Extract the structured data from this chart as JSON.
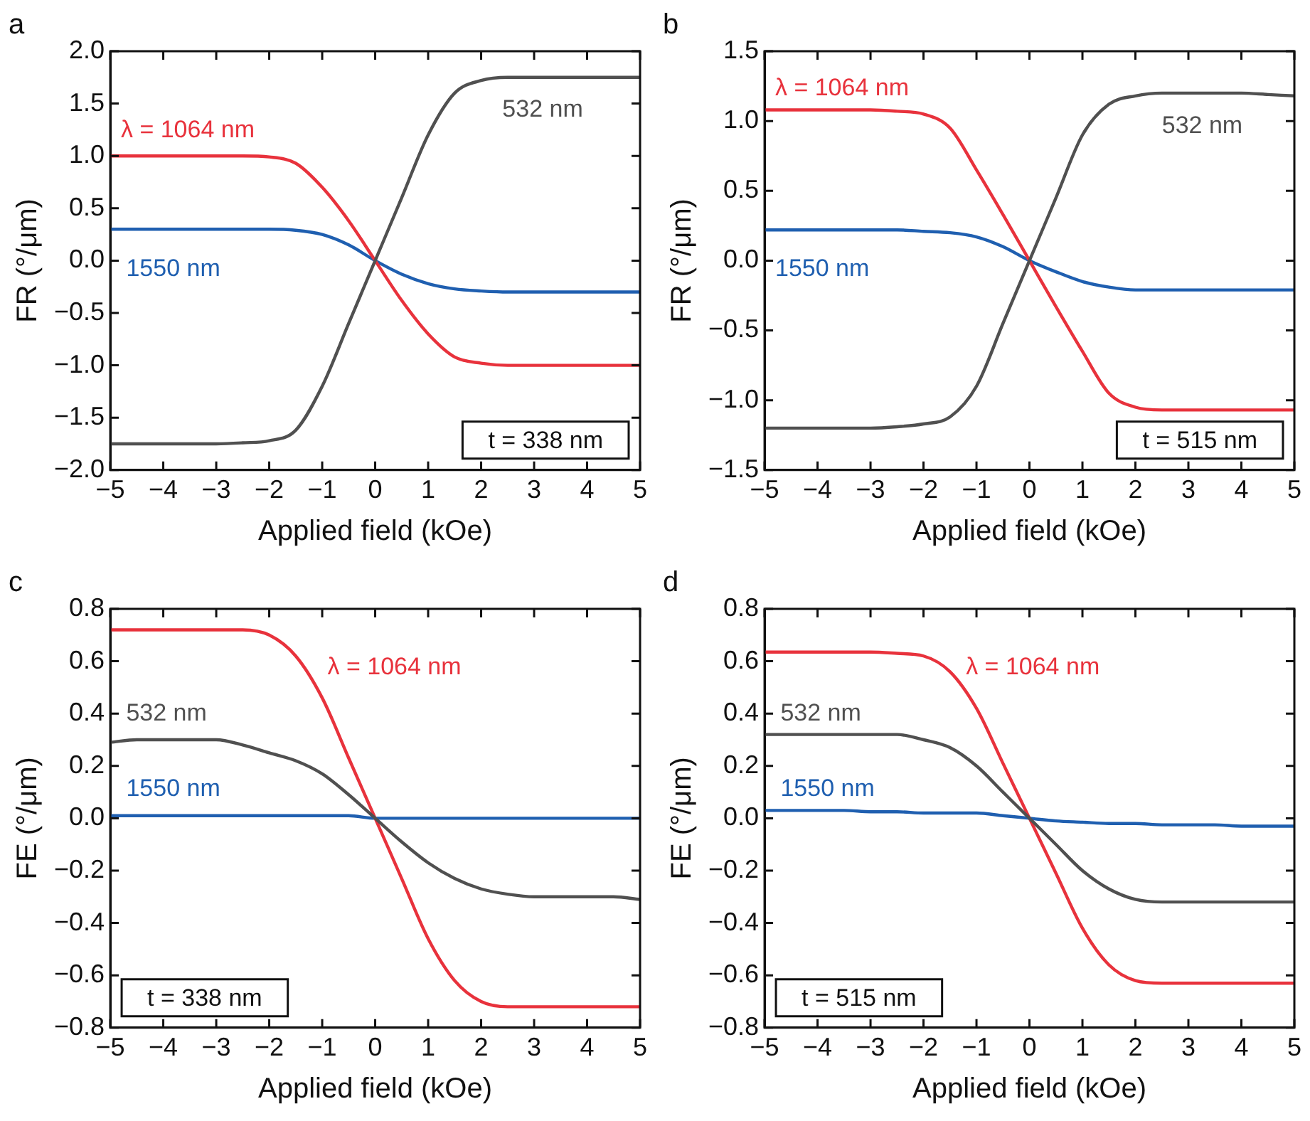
{
  "chart_data": [
    {
      "type": "line",
      "title": "a",
      "xlabel": "Applied field (kOe)",
      "ylabel": "FR (°/μm)",
      "annotations": [
        "t = 338 nm"
      ],
      "x": [
        -5,
        -4.5,
        -4,
        -3.5,
        -3,
        -2.5,
        -2,
        -1.5,
        -1,
        -0.5,
        0,
        0.5,
        1,
        1.5,
        2,
        2.5,
        3,
        3.5,
        4,
        4.5,
        5
      ],
      "series": [
        {
          "name": "532 nm",
          "color": "#505050",
          "values": [
            -1.75,
            -1.75,
            -1.75,
            -1.75,
            -1.75,
            -1.74,
            -1.72,
            -1.62,
            -1.2,
            -0.6,
            0,
            0.6,
            1.2,
            1.6,
            1.72,
            1.75,
            1.75,
            1.75,
            1.75,
            1.75,
            1.75
          ]
        },
        {
          "name": "λ = 1064 nm",
          "color": "#e8323c",
          "values": [
            1.0,
            1.0,
            1.0,
            1.0,
            1.0,
            1.0,
            0.99,
            0.93,
            0.7,
            0.38,
            0,
            -0.38,
            -0.7,
            -0.92,
            -0.98,
            -1.0,
            -1.0,
            -1.0,
            -1.0,
            -1.0,
            -1.0
          ]
        },
        {
          "name": "1550 nm",
          "color": "#1f5fb0",
          "values": [
            0.3,
            0.3,
            0.3,
            0.3,
            0.3,
            0.3,
            0.3,
            0.29,
            0.25,
            0.15,
            0,
            -0.13,
            -0.22,
            -0.27,
            -0.29,
            -0.3,
            -0.3,
            -0.3,
            -0.3,
            -0.3,
            -0.3
          ]
        }
      ],
      "xlim": [
        -5,
        5
      ],
      "ylim": [
        -2,
        2
      ],
      "xticks": [
        {
          "value": -5,
          "label": "−5"
        },
        {
          "value": -4,
          "label": "−4"
        },
        {
          "value": -3,
          "label": "−3"
        },
        {
          "value": -2,
          "label": "−2"
        },
        {
          "value": -1,
          "label": "−1"
        },
        0,
        1,
        2,
        3,
        4,
        5
      ],
      "yticks": [
        {
          "value": -2,
          "label": "−2.0"
        },
        {
          "value": -1.5,
          "label": "−1.5"
        },
        {
          "value": -1,
          "label": "−1.0"
        },
        {
          "value": -0.5,
          "label": "−0.5"
        },
        {
          "value": 0,
          "label": "0.0"
        },
        0.5,
        {
          "value": 1,
          "label": "1.0"
        },
        1.5,
        {
          "value": 2,
          "label": "2.0"
        }
      ],
      "legend": false,
      "grid": false,
      "marker": "none"
    },
    {
      "type": "line",
      "title": "b",
      "xlabel": "Applied field (kOe)",
      "ylabel": "FR (°/μm)",
      "annotations": [
        "t = 515 nm"
      ],
      "x": [
        -5,
        -4.5,
        -4,
        -3.5,
        -3,
        -2.5,
        -2,
        -1.5,
        -1,
        -0.5,
        0,
        0.5,
        1,
        1.5,
        2,
        2.5,
        3,
        3.5,
        4,
        4.5,
        5
      ],
      "series": [
        {
          "name": "532 nm",
          "color": "#505050",
          "values": [
            -1.2,
            -1.2,
            -1.2,
            -1.2,
            -1.2,
            -1.19,
            -1.17,
            -1.12,
            -0.9,
            -0.45,
            0,
            0.45,
            0.9,
            1.12,
            1.18,
            1.2,
            1.2,
            1.2,
            1.2,
            1.19,
            1.18
          ]
        },
        {
          "name": "λ = 1064 nm",
          "color": "#e8323c",
          "values": [
            1.08,
            1.08,
            1.08,
            1.08,
            1.08,
            1.07,
            1.05,
            0.95,
            0.65,
            0.33,
            0,
            -0.33,
            -0.65,
            -0.95,
            -1.05,
            -1.07,
            -1.07,
            -1.07,
            -1.07,
            -1.07,
            -1.07
          ]
        },
        {
          "name": "1550 nm",
          "color": "#1f5fb0",
          "values": [
            0.22,
            0.22,
            0.22,
            0.22,
            0.22,
            0.22,
            0.21,
            0.2,
            0.17,
            0.1,
            0,
            -0.08,
            -0.15,
            -0.19,
            -0.21,
            -0.21,
            -0.21,
            -0.21,
            -0.21,
            -0.21,
            -0.21
          ]
        }
      ],
      "xlim": [
        -5,
        5
      ],
      "ylim": [
        -1.5,
        1.5
      ],
      "xticks": [
        {
          "value": -5,
          "label": "−5"
        },
        {
          "value": -4,
          "label": "−4"
        },
        {
          "value": -3,
          "label": "−3"
        },
        {
          "value": -2,
          "label": "−2"
        },
        {
          "value": -1,
          "label": "−1"
        },
        0,
        1,
        2,
        3,
        4,
        5
      ],
      "yticks": [
        {
          "value": -1.5,
          "label": "−1.5"
        },
        {
          "value": -1,
          "label": "−1.0"
        },
        {
          "value": -0.5,
          "label": "−0.5"
        },
        {
          "value": 0,
          "label": "0.0"
        },
        0.5,
        {
          "value": 1,
          "label": "1.0"
        },
        1.5
      ],
      "legend": false,
      "grid": false,
      "marker": "none"
    },
    {
      "type": "line",
      "title": "c",
      "xlabel": "Applied field (kOe)",
      "ylabel": "FE (°/μm)",
      "annotations": [
        "t = 338 nm"
      ],
      "x": [
        -5,
        -4.5,
        -4,
        -3.5,
        -3,
        -2.5,
        -2,
        -1.5,
        -1,
        -0.5,
        0,
        0.5,
        1,
        1.5,
        2,
        2.5,
        3,
        3.5,
        4,
        4.5,
        5
      ],
      "series": [
        {
          "name": "532 nm",
          "color": "#505050",
          "values": [
            0.29,
            0.3,
            0.3,
            0.3,
            0.3,
            0.28,
            0.25,
            0.22,
            0.17,
            0.09,
            0,
            -0.09,
            -0.17,
            -0.23,
            -0.27,
            -0.29,
            -0.3,
            -0.3,
            -0.3,
            -0.3,
            -0.31
          ]
        },
        {
          "name": "λ = 1064 nm",
          "color": "#e8323c",
          "values": [
            0.72,
            0.72,
            0.72,
            0.72,
            0.72,
            0.72,
            0.7,
            0.62,
            0.46,
            0.23,
            0,
            -0.23,
            -0.46,
            -0.62,
            -0.7,
            -0.72,
            -0.72,
            -0.72,
            -0.72,
            -0.72,
            -0.72
          ]
        },
        {
          "name": "1550 nm",
          "color": "#1f5fb0",
          "values": [
            0.01,
            0.01,
            0.01,
            0.01,
            0.01,
            0.01,
            0.01,
            0.01,
            0.01,
            0.01,
            0,
            0,
            0,
            0,
            0,
            0,
            0,
            0,
            0,
            0,
            0
          ]
        }
      ],
      "xlim": [
        -5,
        5
      ],
      "ylim": [
        -0.8,
        0.8
      ],
      "xticks": [
        {
          "value": -5,
          "label": "−5"
        },
        {
          "value": -4,
          "label": "−4"
        },
        {
          "value": -3,
          "label": "−3"
        },
        {
          "value": -2,
          "label": "−2"
        },
        {
          "value": -1,
          "label": "−1"
        },
        0,
        1,
        2,
        3,
        4,
        5
      ],
      "yticks": [
        {
          "value": -0.8,
          "label": "−0.8"
        },
        {
          "value": -0.6,
          "label": "−0.6"
        },
        {
          "value": -0.4,
          "label": "−0.4"
        },
        {
          "value": -0.2,
          "label": "−0.2"
        },
        {
          "value": 0,
          "label": "0.0"
        },
        0.2,
        0.4,
        0.6,
        0.8
      ],
      "legend": false,
      "grid": false,
      "marker": "none"
    },
    {
      "type": "line",
      "title": "d",
      "xlabel": "Applied field (kOe)",
      "ylabel": "FE (°/μm)",
      "annotations": [
        "t = 515 nm"
      ],
      "x": [
        -5,
        -4.5,
        -4,
        -3.5,
        -3,
        -2.5,
        -2,
        -1.5,
        -1,
        -0.5,
        0,
        0.5,
        1,
        1.5,
        2,
        2.5,
        3,
        3.5,
        4,
        4.5,
        5
      ],
      "series": [
        {
          "name": "532 nm",
          "color": "#505050",
          "values": [
            0.32,
            0.32,
            0.32,
            0.32,
            0.32,
            0.32,
            0.3,
            0.27,
            0.2,
            0.1,
            0,
            -0.1,
            -0.2,
            -0.27,
            -0.31,
            -0.32,
            -0.32,
            -0.32,
            -0.32,
            -0.32,
            -0.32
          ]
        },
        {
          "name": "λ = 1064 nm",
          "color": "#e8323c",
          "values": [
            0.635,
            0.635,
            0.635,
            0.635,
            0.635,
            0.63,
            0.62,
            0.56,
            0.42,
            0.21,
            0,
            -0.21,
            -0.42,
            -0.56,
            -0.62,
            -0.63,
            -0.63,
            -0.63,
            -0.63,
            -0.63,
            -0.63
          ]
        },
        {
          "name": "1550 nm",
          "color": "#1f5fb0",
          "values": [
            0.03,
            0.03,
            0.03,
            0.03,
            0.025,
            0.025,
            0.02,
            0.02,
            0.02,
            0.01,
            0,
            -0.01,
            -0.015,
            -0.02,
            -0.02,
            -0.025,
            -0.025,
            -0.025,
            -0.03,
            -0.03,
            -0.03
          ]
        }
      ],
      "xlim": [
        -5,
        5
      ],
      "ylim": [
        -0.8,
        0.8
      ],
      "xticks": [
        {
          "value": -5,
          "label": "−5"
        },
        {
          "value": -4,
          "label": "−4"
        },
        {
          "value": -3,
          "label": "−3"
        },
        {
          "value": -2,
          "label": "−2"
        },
        {
          "value": -1,
          "label": "−1"
        },
        0,
        1,
        2,
        3,
        4,
        5
      ],
      "yticks": [
        {
          "value": -0.8,
          "label": "−0.8"
        },
        {
          "value": -0.6,
          "label": "−0.6"
        },
        {
          "value": -0.4,
          "label": "−0.4"
        },
        {
          "value": -0.2,
          "label": "−0.2"
        },
        {
          "value": 0,
          "label": "0.0"
        },
        0.2,
        0.4,
        0.6,
        0.8
      ],
      "legend": false,
      "grid": false,
      "marker": "none"
    }
  ]
}
